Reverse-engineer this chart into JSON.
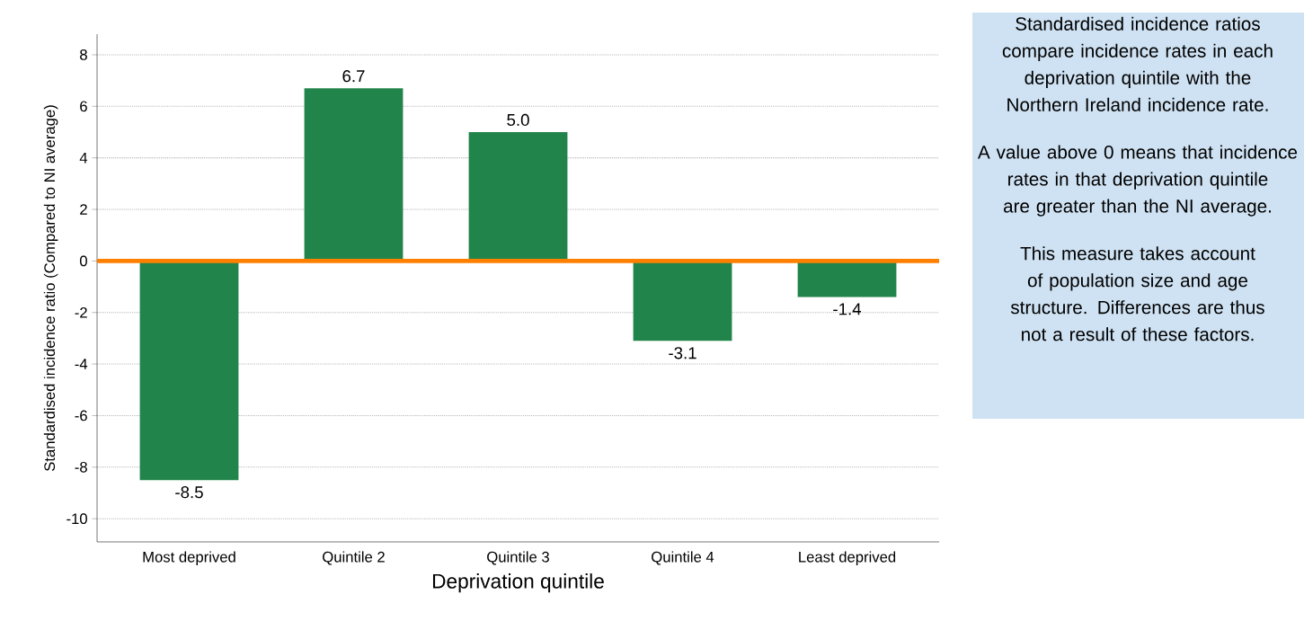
{
  "chart_data": {
    "type": "bar",
    "xlabel": "Deprivation quintile",
    "ylabel": "Standardised incidence ratio (Compared to NI average)",
    "categories": [
      "Most deprived",
      "Quintile 2",
      "Quintile 3",
      "Quintile 4",
      "Least deprived"
    ],
    "values": [
      -8.5,
      6.7,
      5.0,
      -3.1,
      -1.4
    ],
    "color": "#21844a",
    "ylim": [
      -10.9,
      8.8
    ],
    "yticks": [
      -10,
      -8,
      -6,
      -4,
      -2,
      0,
      2,
      4,
      6,
      8
    ],
    "grid": "y",
    "value_labels": [
      "-8.5",
      "6.7",
      "5.0",
      "-3.1",
      "-1.4"
    ],
    "ref_lines": [
      {
        "axis": "y",
        "value": 0,
        "color": "#ff8000"
      }
    ],
    "annotations": [
      "Standardised incidence ratios compare incidence rates in each deprivation quintile with the Northern Ireland incidence rate.",
      "A value above 0 means that incidence rates in that deprivation quintile are greater than the NI average.",
      "This measure takes account of population size and age structure. Differences are thus not a result of these factors."
    ]
  }
}
